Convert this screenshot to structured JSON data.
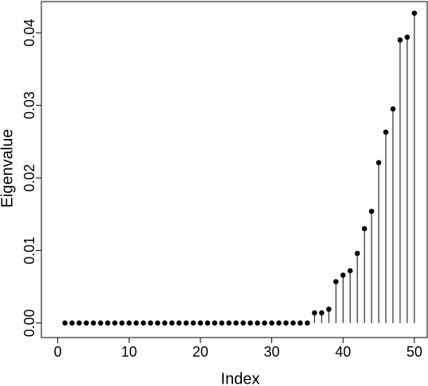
{
  "chart_data": {
    "type": "lollipop",
    "x_label": "Index",
    "y_label": "Eigenvalue",
    "x": [
      1,
      2,
      3,
      4,
      5,
      6,
      7,
      8,
      9,
      10,
      11,
      12,
      13,
      14,
      15,
      16,
      17,
      18,
      19,
      20,
      21,
      22,
      23,
      24,
      25,
      26,
      27,
      28,
      29,
      30,
      31,
      32,
      33,
      34,
      35,
      36,
      37,
      38,
      39,
      40,
      41,
      42,
      43,
      44,
      45,
      46,
      47,
      48,
      49,
      50
    ],
    "values": [
      0,
      0,
      0,
      0,
      0,
      0,
      0,
      0,
      0,
      0,
      0,
      0,
      0,
      0,
      0,
      0,
      0,
      0,
      0,
      0,
      0,
      0,
      0,
      0,
      0,
      0,
      0,
      0,
      0,
      0,
      0,
      0,
      0,
      0,
      0,
      0.0014,
      0.0014,
      0.0019,
      0.0057,
      0.0066,
      0.0072,
      0.0096,
      0.013,
      0.0154,
      0.0221,
      0.0263,
      0.0295,
      0.039,
      0.0394,
      0.0427
    ],
    "color": "#000000",
    "xlim": [
      -2.3,
      51.8
    ],
    "xticks": [
      0,
      10,
      20,
      30,
      40,
      50
    ],
    "ylim": [
      -0.002,
      0.0443
    ],
    "yticks": [
      {
        "value": 0,
        "label": "0.00"
      },
      0.01,
      0.02,
      0.03,
      0.04
    ]
  }
}
